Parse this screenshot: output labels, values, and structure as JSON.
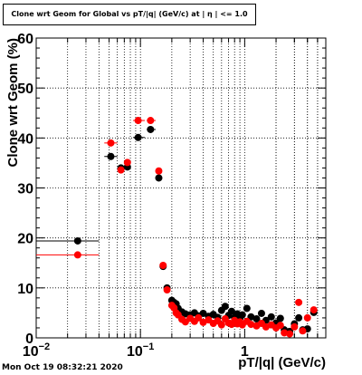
{
  "title": "Clone wrt Geom for Global vs pT/|q| (GeV/c) at | η | <= 1.0",
  "footer": "Mon Oct 19 08:32:21 2020",
  "colors": {
    "series_black": "#000000",
    "series_red": "#ff0000",
    "grid": "#000000"
  },
  "chart_data": {
    "type": "scatter",
    "title": "Clone wrt Geom for Global vs pT/|q| (GeV/c) at | η | <= 1.0",
    "xlabel": "pT/|q| (GeV/c)",
    "ylabel": "Clone wrt Geom (%)",
    "xscale": "log",
    "xlim": [
      0.01,
      6
    ],
    "ylim": [
      0,
      60
    ],
    "grid": true,
    "x_ticks": [
      {
        "value": 0.01,
        "label": "10",
        "sup": "−2"
      },
      {
        "value": 0.1,
        "label": "10",
        "sup": "−1"
      },
      {
        "value": 1,
        "label": "1",
        "sup": ""
      }
    ],
    "y_ticks": [
      0,
      10,
      20,
      30,
      40,
      50,
      60
    ],
    "series": [
      {
        "color": "black",
        "points": [
          {
            "x": 0.025,
            "y": 19.4,
            "xlo": 0.01,
            "xhi": 0.04
          },
          {
            "x": 0.052,
            "y": 36.3,
            "xlo": 0.045,
            "xhi": 0.06
          },
          {
            "x": 0.065,
            "y": 34.0
          },
          {
            "x": 0.075,
            "y": 34.2
          },
          {
            "x": 0.095,
            "y": 40.1,
            "xlo": 0.085,
            "xhi": 0.11
          },
          {
            "x": 0.125,
            "y": 41.7,
            "xlo": 0.115,
            "xhi": 0.14
          },
          {
            "x": 0.15,
            "y": 32.0
          },
          {
            "x": 0.165,
            "y": 14.3
          },
          {
            "x": 0.18,
            "y": 10.0
          },
          {
            "x": 0.2,
            "y": 7.5
          },
          {
            "x": 0.21,
            "y": 7.1
          },
          {
            "x": 0.22,
            "y": 6.8
          },
          {
            "x": 0.23,
            "y": 5.9
          },
          {
            "x": 0.25,
            "y": 5.2
          },
          {
            "x": 0.27,
            "y": 4.8
          },
          {
            "x": 0.3,
            "y": 4.6
          },
          {
            "x": 0.33,
            "y": 5.0
          },
          {
            "x": 0.36,
            "y": 4.4
          },
          {
            "x": 0.4,
            "y": 4.9
          },
          {
            "x": 0.45,
            "y": 4.3
          },
          {
            "x": 0.5,
            "y": 4.7
          },
          {
            "x": 0.55,
            "y": 4.1
          },
          {
            "x": 0.6,
            "y": 5.5
          },
          {
            "x": 0.65,
            "y": 6.3
          },
          {
            "x": 0.7,
            "y": 4.5
          },
          {
            "x": 0.75,
            "y": 5.3
          },
          {
            "x": 0.8,
            "y": 4.0
          },
          {
            "x": 0.85,
            "y": 4.8
          },
          {
            "x": 0.9,
            "y": 3.9
          },
          {
            "x": 0.95,
            "y": 4.6
          },
          {
            "x": 1.05,
            "y": 5.9
          },
          {
            "x": 1.15,
            "y": 4.2
          },
          {
            "x": 1.3,
            "y": 3.8
          },
          {
            "x": 1.45,
            "y": 4.9
          },
          {
            "x": 1.6,
            "y": 3.5
          },
          {
            "x": 1.8,
            "y": 4.2
          },
          {
            "x": 2.0,
            "y": 3.0
          },
          {
            "x": 2.2,
            "y": 3.9
          },
          {
            "x": 2.4,
            "y": 1.6
          },
          {
            "x": 2.7,
            "y": 1.3
          },
          {
            "x": 3.0,
            "y": 2.8
          },
          {
            "x": 3.3,
            "y": 4.0
          },
          {
            "x": 3.6,
            "y": 1.6
          },
          {
            "x": 4.0,
            "y": 1.8
          },
          {
            "x": 4.6,
            "y": 5.1
          }
        ]
      },
      {
        "color": "red",
        "points": [
          {
            "x": 0.025,
            "y": 16.6,
            "xlo": 0.01,
            "xhi": 0.04
          },
          {
            "x": 0.052,
            "y": 39.0,
            "xlo": 0.045,
            "xhi": 0.06
          },
          {
            "x": 0.065,
            "y": 33.6
          },
          {
            "x": 0.075,
            "y": 35.1
          },
          {
            "x": 0.095,
            "y": 43.5,
            "xlo": 0.085,
            "xhi": 0.11
          },
          {
            "x": 0.125,
            "y": 43.5,
            "xlo": 0.115,
            "xhi": 0.14
          },
          {
            "x": 0.15,
            "y": 33.4
          },
          {
            "x": 0.165,
            "y": 14.5
          },
          {
            "x": 0.18,
            "y": 9.6
          },
          {
            "x": 0.2,
            "y": 6.5
          },
          {
            "x": 0.21,
            "y": 6.0
          },
          {
            "x": 0.22,
            "y": 5.0
          },
          {
            "x": 0.23,
            "y": 4.6
          },
          {
            "x": 0.25,
            "y": 3.7
          },
          {
            "x": 0.27,
            "y": 3.2
          },
          {
            "x": 0.3,
            "y": 3.9
          },
          {
            "x": 0.33,
            "y": 3.3
          },
          {
            "x": 0.36,
            "y": 4.0
          },
          {
            "x": 0.4,
            "y": 3.1
          },
          {
            "x": 0.45,
            "y": 3.6
          },
          {
            "x": 0.5,
            "y": 2.9
          },
          {
            "x": 0.55,
            "y": 3.4
          },
          {
            "x": 0.6,
            "y": 2.6
          },
          {
            "x": 0.65,
            "y": 3.8
          },
          {
            "x": 0.7,
            "y": 3.0
          },
          {
            "x": 0.75,
            "y": 2.7
          },
          {
            "x": 0.8,
            "y": 3.5
          },
          {
            "x": 0.85,
            "y": 2.8
          },
          {
            "x": 0.9,
            "y": 3.2
          },
          {
            "x": 0.95,
            "y": 2.6
          },
          {
            "x": 1.05,
            "y": 3.3
          },
          {
            "x": 1.15,
            "y": 2.7
          },
          {
            "x": 1.3,
            "y": 2.4
          },
          {
            "x": 1.45,
            "y": 2.9
          },
          {
            "x": 1.6,
            "y": 2.2
          },
          {
            "x": 1.8,
            "y": 2.6
          },
          {
            "x": 2.0,
            "y": 2.0
          },
          {
            "x": 2.2,
            "y": 2.5
          },
          {
            "x": 2.4,
            "y": 1.0
          },
          {
            "x": 2.7,
            "y": 0.8
          },
          {
            "x": 3.0,
            "y": 2.2
          },
          {
            "x": 3.3,
            "y": 7.1
          },
          {
            "x": 3.6,
            "y": 1.4
          },
          {
            "x": 4.0,
            "y": 4.0
          },
          {
            "x": 4.6,
            "y": 5.6
          }
        ]
      }
    ]
  }
}
